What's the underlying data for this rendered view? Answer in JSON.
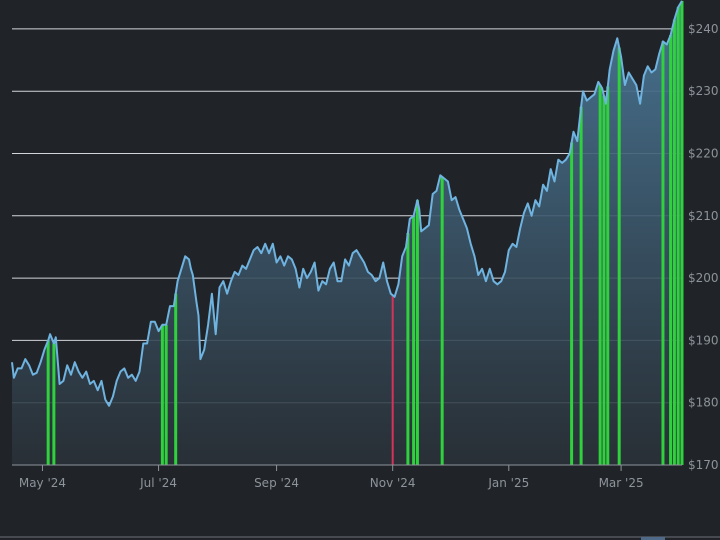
{
  "colors": {
    "background": "#202428",
    "grid": "#e6e9ee",
    "line": "#6fb3e0",
    "area_top": "#4a7898",
    "area_bottom": "#2a3138",
    "marker_up": "#2fd13c",
    "marker_down": "#d6335a",
    "axis_text": "#8d939a",
    "navigator_border": "#6c7178",
    "navigator_handle": "#4e6a88"
  },
  "chart_data": {
    "type": "area",
    "x_axis": {
      "kind": "date",
      "range": [
        "2024-04-15",
        "2025-04-02"
      ],
      "ticks": [
        {
          "date": "2024-05-01",
          "label": "May '24"
        },
        {
          "date": "2024-07-01",
          "label": "Jul '24"
        },
        {
          "date": "2024-09-01",
          "label": "Sep '24"
        },
        {
          "date": "2024-11-01",
          "label": "Nov '24"
        },
        {
          "date": "2025-01-01",
          "label": "Jan '25"
        },
        {
          "date": "2025-03-01",
          "label": "Mar '25"
        }
      ]
    },
    "y_axis": {
      "position": "right",
      "range": [
        170,
        244
      ],
      "ticks": [
        {
          "value": 170,
          "label": "$170"
        },
        {
          "value": 180,
          "label": "$180"
        },
        {
          "value": 190,
          "label": "$190"
        },
        {
          "value": 200,
          "label": "$200"
        },
        {
          "value": 210,
          "label": "$210"
        },
        {
          "value": 220,
          "label": "$220"
        },
        {
          "value": 230,
          "label": "$230"
        },
        {
          "value": 240,
          "label": "$240"
        }
      ]
    },
    "grid": true,
    "series": [
      {
        "points": [
          [
            "2024-04-15",
            186.5
          ],
          [
            "2024-04-16",
            184.0
          ],
          [
            "2024-04-18",
            185.5
          ],
          [
            "2024-04-20",
            185.5
          ],
          [
            "2024-04-22",
            187.0
          ],
          [
            "2024-04-24",
            186.0
          ],
          [
            "2024-04-26",
            184.5
          ],
          [
            "2024-04-28",
            184.8
          ],
          [
            "2024-04-30",
            186.5
          ],
          [
            "2024-05-02",
            188.5
          ],
          [
            "2024-05-04",
            190.0
          ],
          [
            "2024-05-05",
            191.0
          ],
          [
            "2024-05-07",
            189.5
          ],
          [
            "2024-05-08",
            190.5
          ],
          [
            "2024-05-10",
            183.0
          ],
          [
            "2024-05-12",
            183.5
          ],
          [
            "2024-05-14",
            186.0
          ],
          [
            "2024-05-16",
            184.5
          ],
          [
            "2024-05-18",
            186.5
          ],
          [
            "2024-05-20",
            185.0
          ],
          [
            "2024-05-22",
            184.0
          ],
          [
            "2024-05-24",
            185.0
          ],
          [
            "2024-05-26",
            183.0
          ],
          [
            "2024-05-28",
            183.5
          ],
          [
            "2024-05-30",
            182.0
          ],
          [
            "2024-06-01",
            183.5
          ],
          [
            "2024-06-03",
            180.5
          ],
          [
            "2024-06-05",
            179.5
          ],
          [
            "2024-06-07",
            181.0
          ],
          [
            "2024-06-09",
            183.5
          ],
          [
            "2024-06-11",
            185.0
          ],
          [
            "2024-06-13",
            185.5
          ],
          [
            "2024-06-15",
            184.0
          ],
          [
            "2024-06-17",
            184.5
          ],
          [
            "2024-06-19",
            183.5
          ],
          [
            "2024-06-21",
            185.0
          ],
          [
            "2024-06-23",
            189.5
          ],
          [
            "2024-06-25",
            189.5
          ],
          [
            "2024-06-27",
            193.0
          ],
          [
            "2024-06-29",
            193.0
          ],
          [
            "2024-07-01",
            191.5
          ],
          [
            "2024-07-03",
            192.5
          ],
          [
            "2024-07-05",
            192.5
          ],
          [
            "2024-07-07",
            195.5
          ],
          [
            "2024-07-09",
            195.5
          ],
          [
            "2024-07-11",
            199.5
          ],
          [
            "2024-07-13",
            201.5
          ],
          [
            "2024-07-15",
            203.5
          ],
          [
            "2024-07-17",
            203.0
          ],
          [
            "2024-07-18",
            201.5
          ],
          [
            "2024-07-19",
            200.5
          ],
          [
            "2024-07-21",
            196.0
          ],
          [
            "2024-07-22",
            194.0
          ],
          [
            "2024-07-23",
            187.0
          ],
          [
            "2024-07-25",
            188.5
          ],
          [
            "2024-07-27",
            192.5
          ],
          [
            "2024-07-29",
            197.5
          ],
          [
            "2024-07-31",
            191.0
          ],
          [
            "2024-08-02",
            198.5
          ],
          [
            "2024-08-04",
            199.5
          ],
          [
            "2024-08-06",
            197.5
          ],
          [
            "2024-08-08",
            199.5
          ],
          [
            "2024-08-10",
            201.0
          ],
          [
            "2024-08-12",
            200.5
          ],
          [
            "2024-08-14",
            202.0
          ],
          [
            "2024-08-16",
            201.5
          ],
          [
            "2024-08-18",
            203.0
          ],
          [
            "2024-08-20",
            204.5
          ],
          [
            "2024-08-22",
            205.0
          ],
          [
            "2024-08-24",
            204.0
          ],
          [
            "2024-08-26",
            205.5
          ],
          [
            "2024-08-28",
            204.0
          ],
          [
            "2024-08-30",
            205.5
          ],
          [
            "2024-09-01",
            202.5
          ],
          [
            "2024-09-03",
            203.5
          ],
          [
            "2024-09-05",
            202.0
          ],
          [
            "2024-09-07",
            203.5
          ],
          [
            "2024-09-09",
            203.0
          ],
          [
            "2024-09-11",
            201.5
          ],
          [
            "2024-09-13",
            198.5
          ],
          [
            "2024-09-15",
            201.5
          ],
          [
            "2024-09-17",
            200.0
          ],
          [
            "2024-09-19",
            201.0
          ],
          [
            "2024-09-21",
            202.5
          ],
          [
            "2024-09-23",
            198.0
          ],
          [
            "2024-09-25",
            199.5
          ],
          [
            "2024-09-27",
            199.0
          ],
          [
            "2024-09-29",
            201.5
          ],
          [
            "2024-10-01",
            202.5
          ],
          [
            "2024-10-03",
            199.5
          ],
          [
            "2024-10-05",
            199.5
          ],
          [
            "2024-10-07",
            203.0
          ],
          [
            "2024-10-09",
            202.0
          ],
          [
            "2024-10-11",
            204.0
          ],
          [
            "2024-10-13",
            204.5
          ],
          [
            "2024-10-15",
            203.5
          ],
          [
            "2024-10-17",
            202.5
          ],
          [
            "2024-10-19",
            201.0
          ],
          [
            "2024-10-21",
            200.5
          ],
          [
            "2024-10-23",
            199.5
          ],
          [
            "2024-10-25",
            200.0
          ],
          [
            "2024-10-27",
            202.5
          ],
          [
            "2024-10-29",
            199.5
          ],
          [
            "2024-10-31",
            197.5
          ],
          [
            "2024-11-02",
            197.0
          ],
          [
            "2024-11-04",
            199.0
          ],
          [
            "2024-11-06",
            203.5
          ],
          [
            "2024-11-08",
            205.0
          ],
          [
            "2024-11-10",
            209.5
          ],
          [
            "2024-11-12",
            210.0
          ],
          [
            "2024-11-14",
            212.5
          ],
          [
            "2024-11-15",
            211.0
          ],
          [
            "2024-11-16",
            207.5
          ],
          [
            "2024-11-18",
            208.0
          ],
          [
            "2024-11-20",
            208.5
          ],
          [
            "2024-11-22",
            213.5
          ],
          [
            "2024-11-24",
            214.0
          ],
          [
            "2024-11-26",
            216.5
          ],
          [
            "2024-11-28",
            216.0
          ],
          [
            "2024-11-30",
            215.5
          ],
          [
            "2024-12-02",
            212.5
          ],
          [
            "2024-12-04",
            213.0
          ],
          [
            "2024-12-06",
            211.0
          ],
          [
            "2024-12-08",
            209.5
          ],
          [
            "2024-12-10",
            208.0
          ],
          [
            "2024-12-12",
            205.5
          ],
          [
            "2024-12-14",
            203.5
          ],
          [
            "2024-12-16",
            200.5
          ],
          [
            "2024-12-18",
            201.5
          ],
          [
            "2024-12-20",
            199.5
          ],
          [
            "2024-12-22",
            201.5
          ],
          [
            "2024-12-24",
            199.5
          ],
          [
            "2024-12-26",
            199.0
          ],
          [
            "2024-12-28",
            199.5
          ],
          [
            "2024-12-30",
            201.0
          ],
          [
            "2025-01-01",
            204.5
          ],
          [
            "2025-01-03",
            205.5
          ],
          [
            "2025-01-05",
            205.0
          ],
          [
            "2025-01-07",
            208.0
          ],
          [
            "2025-01-09",
            210.5
          ],
          [
            "2025-01-11",
            212.0
          ],
          [
            "2025-01-13",
            210.0
          ],
          [
            "2025-01-15",
            212.5
          ],
          [
            "2025-01-17",
            211.5
          ],
          [
            "2025-01-19",
            215.0
          ],
          [
            "2025-01-21",
            214.0
          ],
          [
            "2025-01-23",
            217.5
          ],
          [
            "2025-01-25",
            215.5
          ],
          [
            "2025-01-27",
            219.0
          ],
          [
            "2025-01-29",
            218.5
          ],
          [
            "2025-01-31",
            219.0
          ],
          [
            "2025-02-02",
            220.0
          ],
          [
            "2025-02-04",
            223.5
          ],
          [
            "2025-02-06",
            222.0
          ],
          [
            "2025-02-08",
            227.5
          ],
          [
            "2025-02-09",
            230.0
          ],
          [
            "2025-02-11",
            228.5
          ],
          [
            "2025-02-13",
            229.0
          ],
          [
            "2025-02-15",
            229.5
          ],
          [
            "2025-02-17",
            231.5
          ],
          [
            "2025-02-19",
            230.5
          ],
          [
            "2025-02-21",
            228.0
          ],
          [
            "2025-02-23",
            233.5
          ],
          [
            "2025-02-25",
            236.5
          ],
          [
            "2025-02-27",
            238.5
          ],
          [
            "2025-03-01",
            235.5
          ],
          [
            "2025-03-03",
            231.0
          ],
          [
            "2025-03-05",
            233.0
          ],
          [
            "2025-03-07",
            232.0
          ],
          [
            "2025-03-09",
            231.0
          ],
          [
            "2025-03-11",
            228.0
          ],
          [
            "2025-03-13",
            232.5
          ],
          [
            "2025-03-15",
            234.0
          ],
          [
            "2025-03-17",
            233.0
          ],
          [
            "2025-03-19",
            233.5
          ],
          [
            "2025-03-21",
            236.0
          ],
          [
            "2025-03-23",
            238.0
          ],
          [
            "2025-03-25",
            237.5
          ],
          [
            "2025-03-27",
            239.0
          ],
          [
            "2025-03-29",
            241.5
          ],
          [
            "2025-03-31",
            243.5
          ],
          [
            "2025-04-02",
            244.5
          ]
        ]
      }
    ],
    "markers": {
      "up": [
        "2024-05-04",
        "2024-05-07",
        "2024-07-03",
        "2024-07-05",
        "2024-07-10",
        "2024-11-09",
        "2024-11-12",
        "2024-11-14",
        "2024-11-27",
        "2025-02-03",
        "2025-02-08",
        "2025-02-18",
        "2025-02-20",
        "2025-02-22",
        "2025-02-28",
        "2025-03-23",
        "2025-03-27",
        "2025-03-29",
        "2025-03-31",
        "2025-04-02"
      ],
      "down": [
        "2024-11-01"
      ]
    }
  }
}
